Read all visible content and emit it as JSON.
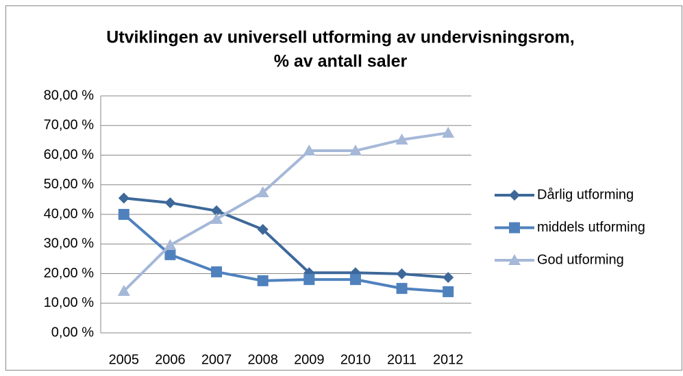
{
  "chart_data": {
    "type": "line",
    "title": [
      "Utviklingen av universell utforming av undervisningsrom,",
      "% av antall saler"
    ],
    "categories": [
      "2005",
      "2006",
      "2007",
      "2008",
      "2009",
      "2010",
      "2011",
      "2012"
    ],
    "series": [
      {
        "name": "Dårlig utforming",
        "color": "#3d6899",
        "marker": "diamond",
        "values": [
          45.5,
          43.9,
          41.2,
          34.9,
          20.3,
          20.3,
          19.9,
          18.7
        ]
      },
      {
        "name": "middels utforming",
        "color": "#4f81bd",
        "marker": "square",
        "values": [
          40.0,
          26.4,
          20.6,
          17.6,
          18.0,
          18.0,
          15.0,
          13.9
        ]
      },
      {
        "name": "God utforming",
        "color": "#a5b8d8",
        "marker": "triangle",
        "values": [
          14.1,
          29.6,
          38.4,
          47.4,
          61.5,
          61.5,
          65.2,
          67.5
        ]
      }
    ],
    "ylim": [
      0,
      80
    ],
    "yticks": [
      {
        "value": 0,
        "label": "0,00 %"
      },
      {
        "value": 10,
        "label": "10,00 %"
      },
      {
        "value": 20,
        "label": "20,00 %"
      },
      {
        "value": 30,
        "label": "30,00 %"
      },
      {
        "value": 40,
        "label": "40,00 %"
      },
      {
        "value": 50,
        "label": "50,00 %"
      },
      {
        "value": 60,
        "label": "60,00 %"
      },
      {
        "value": 70,
        "label": "70,00 %"
      },
      {
        "value": 80,
        "label": "80,00 %"
      }
    ],
    "grid": true,
    "legend": "right"
  }
}
